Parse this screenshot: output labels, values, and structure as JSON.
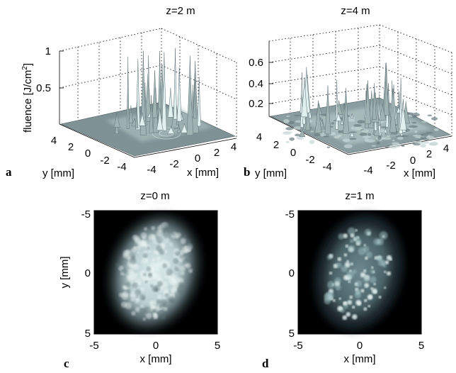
{
  "figure": {
    "panels": [
      {
        "letter": "a",
        "title": "z=2 m",
        "zlabel_pre": "fluence [J/cm",
        "zlabel_sup": "2",
        "zlabel_post": "]",
        "xlabel": "x [mm]",
        "ylabel": "y [mm]",
        "z_ticks": [
          "1",
          "0.5"
        ],
        "x_ticks": [
          "-4",
          "-2",
          "0",
          "2",
          "4"
        ],
        "y_ticks": [
          "4",
          "2",
          "0",
          "-2",
          "-4"
        ]
      },
      {
        "letter": "b",
        "title": "z=4 m",
        "xlabel": "x [mm]",
        "ylabel": "y [mm]",
        "z_ticks": [
          "0.6",
          "0.4",
          "0.2"
        ],
        "x_ticks": [
          "-4",
          "-2",
          "0",
          "2",
          "4"
        ],
        "y_ticks": [
          "4",
          "2",
          "0",
          "-2",
          "-4"
        ]
      },
      {
        "letter": "c",
        "title": "z=0 m",
        "xlabel": "x [mm]",
        "ylabel": "y [mm]",
        "x_ticks": [
          "-5",
          "0",
          "5"
        ],
        "y_ticks": [
          "-5",
          "0",
          "5"
        ]
      },
      {
        "letter": "d",
        "title": "z=1 m",
        "xlabel": "x [mm]",
        "x_ticks": [
          "-5",
          "0",
          "5"
        ],
        "y_ticks": [
          "-5",
          "0",
          "5"
        ]
      }
    ]
  },
  "colors": {
    "surface": "#9fb4b2",
    "surface_shadow": "#5f6f74",
    "beam_glow": "#dff0ef",
    "background_dark": "#000000"
  }
}
